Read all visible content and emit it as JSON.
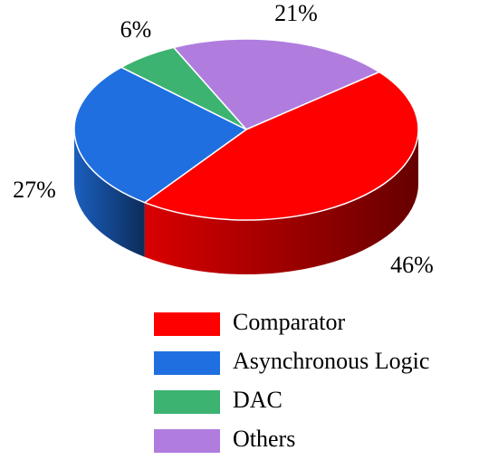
{
  "chart_data": {
    "type": "pie",
    "categories": [
      "Comparator",
      "Asynchronous Logic",
      "DAC",
      "Others"
    ],
    "values": [
      46,
      27,
      6,
      21
    ],
    "value_labels": [
      "46%",
      "27%",
      "6%",
      "21%"
    ],
    "colors": [
      "#ff0000",
      "#1f6fe0",
      "#3cb371",
      "#b07ddf"
    ]
  }
}
